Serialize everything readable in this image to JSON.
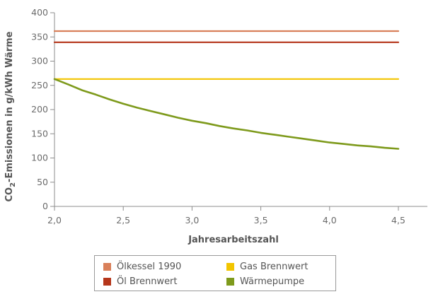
{
  "chart_data": {
    "type": "line",
    "xlabel": "Jahresarbeitszahl",
    "ylabel_prefix": "CO",
    "ylabel_sub": "2",
    "ylabel_suffix": "-Emissionen in g/kWh Wärme",
    "xlim": [
      2.0,
      4.5
    ],
    "ylim": [
      0,
      400
    ],
    "x_ticks": [
      2.0,
      2.5,
      3.0,
      3.5,
      4.0,
      4.5
    ],
    "x_tick_labels": [
      "2,0",
      "2,5",
      "3,0",
      "3,5",
      "4,0",
      "4,5"
    ],
    "y_ticks": [
      0,
      50,
      100,
      150,
      200,
      250,
      300,
      350,
      400
    ],
    "y_tick_labels": [
      "0",
      "50",
      "100",
      "150",
      "200",
      "250",
      "300",
      "350",
      "400"
    ],
    "grid": false,
    "legend_position": "bottom",
    "series": [
      {
        "name": "Ölkessel 1990",
        "color": "#d9805a",
        "x": [
          2.0,
          4.5
        ],
        "y": [
          362,
          362
        ]
      },
      {
        "name": "Gas Brennwert",
        "color": "#f2c500",
        "x": [
          2.0,
          4.5
        ],
        "y": [
          263,
          263
        ]
      },
      {
        "name": "Öl Brennwert",
        "color": "#b5361b",
        "x": [
          2.0,
          4.5
        ],
        "y": [
          339,
          339
        ]
      },
      {
        "name": "Wärmepumpe",
        "color": "#7e9a1c",
        "x": [
          2.0,
          2.1,
          2.2,
          2.3,
          2.4,
          2.5,
          2.6,
          2.7,
          2.8,
          2.9,
          3.0,
          3.1,
          3.2,
          3.3,
          3.4,
          3.5,
          3.6,
          3.7,
          3.8,
          3.9,
          4.0,
          4.1,
          4.2,
          4.3,
          4.4,
          4.5
        ],
        "y": [
          263,
          252,
          240,
          231,
          221,
          212,
          204,
          197,
          190,
          183,
          177,
          172,
          166,
          161,
          157,
          152,
          148,
          144,
          140,
          136,
          132,
          129,
          126,
          124,
          121,
          119
        ]
      }
    ]
  }
}
